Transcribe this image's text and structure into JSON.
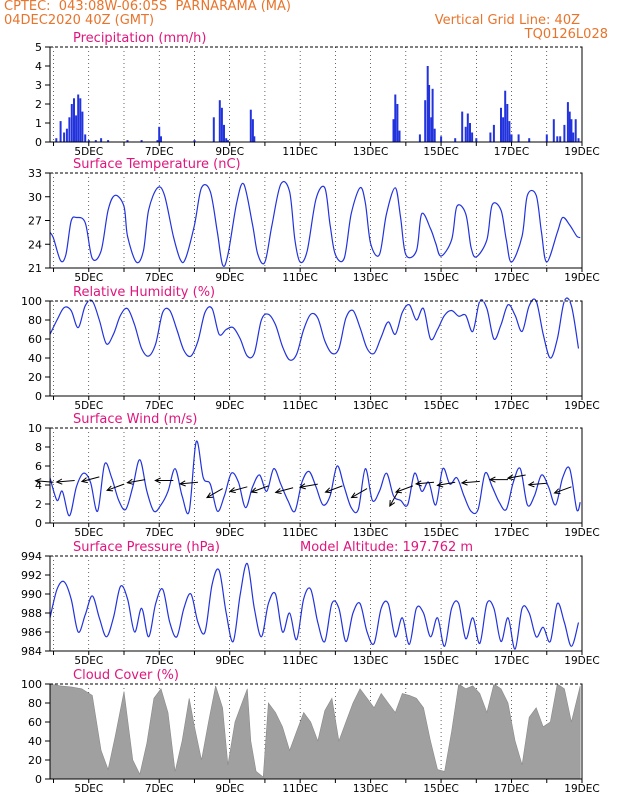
{
  "header": {
    "line1": "CPTEC:  043:08W-06:05S  PARNARAMA (MA)",
    "line2": "04DEC2020 40Z (GMT)",
    "grid_note": "Vertical Grid Line: 40Z",
    "code": "TQ0126L028"
  },
  "colors": {
    "header": "#e8742c",
    "title": "#e0157d",
    "series": "#2233dd",
    "cloud": "#a0a0a0"
  },
  "chart_data": [
    {
      "id": "precip",
      "type": "bar",
      "title": "Precipitation (mm/h)",
      "ylim": [
        0,
        5
      ],
      "yticks": [
        "0",
        "1",
        "2",
        "3",
        "4",
        "5"
      ],
      "xlabels": [
        "5DEC",
        "7DEC",
        "9DEC",
        "11DEC",
        "13DEC",
        "15DEC",
        "17DEC",
        "19DEC"
      ],
      "x": [
        4.08,
        4.2,
        4.3,
        4.38,
        4.45,
        4.52,
        4.58,
        4.64,
        4.7,
        4.76,
        4.82,
        4.9,
        5.0,
        5.2,
        5.35,
        5.55,
        6.1,
        6.5,
        6.95,
        7.0,
        7.05,
        8.0,
        8.55,
        8.72,
        8.78,
        8.84,
        8.9,
        8.95,
        9.6,
        9.66,
        9.7,
        13.65,
        13.7,
        13.76,
        13.82,
        14.4,
        14.55,
        14.62,
        14.66,
        14.72,
        14.76,
        14.82,
        15.0,
        15.4,
        15.6,
        15.7,
        15.76,
        15.82,
        15.88,
        16.0,
        16.4,
        16.5,
        16.7,
        16.76,
        16.82,
        16.88,
        16.94,
        17.0,
        17.2,
        17.5,
        18.0,
        18.2,
        18.3,
        18.38,
        18.5,
        18.6,
        18.65,
        18.7,
        18.75,
        18.82,
        18.9
      ],
      "values": [
        0.2,
        1.1,
        0.5,
        0.7,
        1.3,
        2.0,
        2.3,
        1.4,
        2.5,
        2.3,
        1.6,
        0.4,
        0.1,
        0.1,
        0.2,
        0.1,
        0.1,
        0.1,
        0.1,
        0.8,
        0.3,
        0.1,
        1.3,
        2.2,
        1.8,
        0.9,
        0.2,
        0.1,
        1.7,
        1.2,
        0.3,
        1.2,
        2.5,
        2.0,
        0.6,
        0.4,
        2.2,
        4.0,
        3.0,
        1.3,
        2.8,
        0.7,
        0.3,
        0.2,
        1.6,
        0.8,
        1.5,
        1.0,
        0.5,
        0.2,
        0.5,
        0.9,
        1.8,
        1.3,
        2.7,
        2.0,
        1.1,
        0.4,
        0.4,
        0.2,
        0.4,
        1.2,
        0.3,
        0.3,
        0.9,
        2.1,
        1.6,
        1.2,
        0.5,
        1.2,
        0.2
      ]
    },
    {
      "id": "temp",
      "type": "line",
      "title": "Surface Temperature (nC)",
      "ylim": [
        20.2,
        33
      ],
      "yticks": [
        "21",
        "24",
        "27",
        "30",
        "33"
      ],
      "xlabels": [
        "5DEC",
        "7DEC",
        "9DEC",
        "11DEC",
        "13DEC",
        "15DEC",
        "17DEC",
        "19DEC"
      ],
      "x": [
        3.9,
        4.0,
        4.2,
        4.35,
        4.5,
        4.65,
        4.9,
        5.1,
        5.35,
        5.55,
        5.75,
        6.0,
        6.1,
        6.35,
        6.55,
        6.7,
        6.95,
        7.15,
        7.4,
        7.6,
        7.75,
        8.0,
        8.2,
        8.45,
        8.65,
        8.8,
        8.95,
        9.2,
        9.4,
        9.65,
        9.8,
        10.0,
        10.2,
        10.45,
        10.7,
        10.85,
        11.0,
        11.2,
        11.45,
        11.7,
        11.85,
        12.0,
        12.25,
        12.45,
        12.7,
        12.85,
        13.0,
        13.25,
        13.45,
        13.7,
        13.85,
        14.0,
        14.3,
        14.45,
        14.7,
        14.85,
        15.0,
        15.3,
        15.45,
        15.7,
        15.85,
        16.0,
        16.3,
        16.45,
        16.7,
        16.85,
        17.0,
        17.3,
        17.45,
        17.7,
        17.85,
        18.0,
        18.3,
        18.45,
        18.65,
        18.85,
        18.95
      ],
      "values": [
        25.0,
        24.2,
        21.2,
        22.0,
        26.5,
        27.0,
        26.3,
        21.5,
        22.5,
        28.0,
        30.0,
        28.5,
        24.5,
        21.0,
        22.5,
        28.0,
        31.0,
        30.0,
        24.5,
        21.3,
        21.5,
        26.0,
        31.0,
        30.5,
        25.0,
        20.6,
        22.0,
        29.0,
        31.5,
        26.0,
        22.0,
        21.0,
        26.0,
        31.5,
        30.5,
        24.0,
        21.0,
        22.5,
        29.5,
        31.0,
        26.0,
        22.0,
        21.5,
        27.5,
        31.0,
        29.0,
        23.5,
        22.0,
        27.5,
        31.0,
        27.0,
        22.0,
        22.5,
        27.5,
        25.5,
        23.5,
        21.8,
        24.0,
        28.5,
        27.5,
        23.0,
        21.7,
        24.0,
        28.7,
        28.0,
        24.0,
        21.0,
        24.5,
        30.0,
        30.0,
        25.0,
        21.0,
        25.0,
        27.0,
        26.0,
        24.5,
        24.3
      ]
    },
    {
      "id": "rh",
      "type": "line",
      "title": "Relative Humidity (%)",
      "ylim": [
        0,
        100
      ],
      "yticks": [
        "0",
        "20",
        "40",
        "60",
        "80",
        "100"
      ],
      "xlabels": [
        "5DEC",
        "7DEC",
        "9DEC",
        "11DEC",
        "13DEC",
        "15DEC",
        "17DEC",
        "19DEC"
      ],
      "x": [
        3.9,
        4.1,
        4.3,
        4.5,
        4.7,
        4.9,
        5.1,
        5.3,
        5.5,
        5.7,
        5.9,
        6.1,
        6.3,
        6.5,
        6.7,
        6.9,
        7.1,
        7.3,
        7.5,
        7.7,
        7.9,
        8.1,
        8.3,
        8.5,
        8.7,
        8.9,
        9.1,
        9.3,
        9.5,
        9.7,
        9.9,
        10.1,
        10.3,
        10.5,
        10.7,
        10.9,
        11.1,
        11.3,
        11.5,
        11.7,
        11.9,
        12.1,
        12.3,
        12.5,
        12.7,
        12.9,
        13.1,
        13.3,
        13.5,
        13.7,
        13.9,
        14.1,
        14.3,
        14.5,
        14.7,
        14.9,
        15.1,
        15.3,
        15.5,
        15.7,
        15.9,
        16.1,
        16.3,
        16.5,
        16.7,
        16.9,
        17.1,
        17.3,
        17.5,
        17.7,
        17.9,
        18.1,
        18.3,
        18.5,
        18.7,
        18.9
      ],
      "values": [
        65,
        80,
        93,
        90,
        72,
        95,
        100,
        80,
        55,
        65,
        85,
        92,
        75,
        50,
        42,
        55,
        88,
        90,
        70,
        48,
        42,
        58,
        88,
        92,
        65,
        70,
        72,
        60,
        42,
        45,
        80,
        86,
        75,
        52,
        38,
        44,
        70,
        86,
        82,
        58,
        45,
        50,
        82,
        90,
        72,
        50,
        45,
        62,
        78,
        65,
        88,
        96,
        80,
        92,
        60,
        70,
        85,
        90,
        84,
        85,
        68,
        100,
        92,
        60,
        75,
        96,
        85,
        68,
        95,
        100,
        65,
        40,
        60,
        100,
        95,
        50
      ],
      "smooth": true
    },
    {
      "id": "wind",
      "type": "line",
      "title": "Surface Wind (m/s)",
      "ylim": [
        -0.5,
        10
      ],
      "yticks": [
        "0",
        "2",
        "4",
        "6",
        "8",
        "10"
      ],
      "xlabels": [
        "5DEC",
        "7DEC",
        "9DEC",
        "11DEC",
        "13DEC",
        "15DEC",
        "17DEC",
        "19DEC"
      ],
      "x": [
        3.9,
        4.1,
        4.25,
        4.45,
        4.65,
        4.85,
        5.05,
        5.25,
        5.45,
        5.65,
        5.85,
        6.05,
        6.25,
        6.45,
        6.65,
        6.85,
        7.05,
        7.25,
        7.45,
        7.65,
        7.85,
        8.05,
        8.25,
        8.45,
        8.65,
        8.85,
        9.05,
        9.25,
        9.45,
        9.65,
        9.85,
        10.05,
        10.25,
        10.45,
        10.65,
        10.85,
        11.05,
        11.25,
        11.45,
        11.65,
        11.85,
        12.05,
        12.25,
        12.45,
        12.65,
        12.85,
        13.05,
        13.25,
        13.45,
        13.65,
        13.85,
        14.05,
        14.25,
        14.45,
        14.65,
        14.85,
        15.05,
        15.25,
        15.45,
        15.65,
        15.85,
        16.05,
        16.25,
        16.45,
        16.65,
        16.85,
        17.05,
        17.25,
        17.45,
        17.65,
        17.85,
        18.05,
        18.25,
        18.45,
        18.65,
        18.85,
        18.95
      ],
      "values": [
        4.5,
        2.0,
        3.0,
        0.3,
        3.5,
        5.0,
        4.0,
        0.8,
        6.0,
        4.5,
        2.0,
        1.0,
        3.5,
        6.5,
        3.0,
        0.8,
        1.5,
        3.0,
        5.5,
        2.5,
        0.8,
        8.5,
        4.5,
        3.8,
        0.8,
        2.5,
        5.0,
        4.0,
        1.2,
        3.5,
        4.8,
        3.0,
        5.5,
        3.8,
        2.0,
        0.8,
        4.0,
        5.2,
        3.5,
        1.5,
        2.5,
        5.8,
        3.5,
        1.2,
        1.0,
        5.5,
        2.0,
        3.0,
        5.0,
        2.5,
        2.0,
        1.5,
        5.0,
        3.0,
        4.0,
        1.5,
        5.5,
        3.8,
        4.5,
        2.5,
        0.8,
        1.0,
        5.0,
        3.5,
        1.8,
        1.0,
        4.0,
        5.5,
        1.5,
        2.5,
        4.8,
        3.5,
        1.5,
        4.5,
        5.5,
        1.0,
        1.8
      ],
      "smooth": true,
      "arrows": [
        {
          "x": 4.0,
          "y": 4.0,
          "dir": 175
        },
        {
          "x": 4.6,
          "y": 4.2,
          "dir": 185
        },
        {
          "x": 5.3,
          "y": 4.6,
          "dir": 195
        },
        {
          "x": 6.0,
          "y": 3.8,
          "dir": 200
        },
        {
          "x": 6.6,
          "y": 4.3,
          "dir": 190
        },
        {
          "x": 7.4,
          "y": 4.2,
          "dir": 180
        },
        {
          "x": 8.1,
          "y": 4.0,
          "dir": 185
        },
        {
          "x": 8.8,
          "y": 3.3,
          "dir": 210
        },
        {
          "x": 9.5,
          "y": 3.5,
          "dir": 195
        },
        {
          "x": 10.1,
          "y": 3.6,
          "dir": 200
        },
        {
          "x": 10.8,
          "y": 3.4,
          "dir": 195
        },
        {
          "x": 11.5,
          "y": 3.8,
          "dir": 190
        },
        {
          "x": 12.2,
          "y": 3.6,
          "dir": 200
        },
        {
          "x": 12.9,
          "y": 3.3,
          "dir": 210
        },
        {
          "x": 13.8,
          "y": 3.1,
          "dir": 240
        },
        {
          "x": 14.2,
          "y": 3.6,
          "dir": 200
        },
        {
          "x": 14.8,
          "y": 4.0,
          "dir": 185
        },
        {
          "x": 15.4,
          "y": 4.0,
          "dir": 190
        },
        {
          "x": 16.1,
          "y": 4.1,
          "dir": 185
        },
        {
          "x": 16.9,
          "y": 4.3,
          "dir": 180
        },
        {
          "x": 17.4,
          "y": 4.8,
          "dir": 190
        },
        {
          "x": 18.0,
          "y": 3.9,
          "dir": 185
        },
        {
          "x": 18.7,
          "y": 3.5,
          "dir": 200
        }
      ]
    },
    {
      "id": "press",
      "type": "line",
      "title": "Surface Pressure (hPa)",
      "subtitle": "Model Altitude: 197.762 m",
      "ylim": [
        984,
        994
      ],
      "yticks": [
        "984",
        "986",
        "988",
        "990",
        "992",
        "994"
      ],
      "xlabels": [
        "5DEC",
        "7DEC",
        "9DEC",
        "11DEC",
        "13DEC",
        "15DEC",
        "17DEC",
        "19DEC"
      ],
      "x": [
        3.9,
        4.1,
        4.3,
        4.5,
        4.7,
        4.9,
        5.1,
        5.3,
        5.5,
        5.7,
        5.9,
        6.1,
        6.3,
        6.5,
        6.7,
        6.9,
        7.1,
        7.3,
        7.5,
        7.7,
        7.9,
        8.1,
        8.3,
        8.5,
        8.7,
        8.9,
        9.1,
        9.3,
        9.5,
        9.7,
        9.9,
        10.1,
        10.3,
        10.5,
        10.7,
        10.9,
        11.1,
        11.3,
        11.5,
        11.7,
        11.9,
        12.1,
        12.3,
        12.5,
        12.7,
        12.9,
        13.1,
        13.3,
        13.5,
        13.7,
        13.9,
        14.1,
        14.3,
        14.5,
        14.7,
        14.9,
        15.1,
        15.3,
        15.5,
        15.7,
        15.9,
        16.1,
        16.3,
        16.5,
        16.7,
        16.9,
        17.1,
        17.3,
        17.5,
        17.7,
        17.9,
        18.1,
        18.3,
        18.5,
        18.7,
        18.9
      ],
      "values": [
        987.5,
        990.5,
        991.3,
        989.5,
        986.0,
        987.8,
        989.8,
        987.5,
        985.5,
        987.5,
        990.8,
        989.5,
        986.0,
        988.5,
        985.5,
        989.0,
        990.5,
        987.0,
        985.5,
        988.5,
        990.0,
        987.0,
        986.0,
        991.0,
        992.5,
        988.0,
        985.0,
        990.0,
        993.2,
        988.5,
        985.5,
        989.0,
        990.0,
        986.0,
        988.0,
        985.2,
        989.5,
        990.5,
        987.0,
        985.0,
        989.0,
        988.5,
        985.0,
        988.0,
        989.0,
        986.0,
        984.8,
        988.5,
        989.0,
        985.5,
        987.5,
        984.7,
        988.5,
        988.0,
        985.5,
        987.5,
        984.5,
        988.5,
        989.0,
        985.3,
        987.5,
        984.8,
        989.0,
        988.5,
        985.0,
        987.5,
        984.2,
        988.5,
        988.0,
        985.5,
        986.5,
        985.0,
        989.0,
        987.0,
        984.5,
        987.0
      ],
      "smooth": true
    },
    {
      "id": "cloud",
      "type": "area",
      "title": "Cloud Cover (%)",
      "ylim": [
        0,
        100
      ],
      "yticks": [
        "0",
        "20",
        "40",
        "60",
        "80",
        "100"
      ],
      "xlabels": [
        "5DEC",
        "7DEC",
        "9DEC",
        "11DEC",
        "13DEC",
        "15DEC",
        "17DEC",
        "19DEC"
      ],
      "x": [
        3.9,
        4.2,
        4.5,
        4.8,
        5.1,
        5.35,
        5.55,
        5.75,
        6.0,
        6.25,
        6.45,
        6.65,
        6.85,
        7.05,
        7.25,
        7.45,
        7.65,
        7.85,
        8.0,
        8.2,
        8.4,
        8.6,
        8.8,
        8.95,
        9.15,
        9.35,
        9.5,
        9.6,
        9.75,
        9.95,
        10.1,
        10.3,
        10.5,
        10.7,
        10.9,
        11.1,
        11.3,
        11.5,
        11.7,
        11.9,
        12.1,
        12.3,
        12.5,
        12.7,
        12.9,
        13.1,
        13.3,
        13.5,
        13.7,
        13.9,
        14.1,
        14.3,
        14.5,
        14.7,
        14.9,
        15.1,
        15.3,
        15.5,
        15.7,
        15.9,
        16.1,
        16.3,
        16.5,
        16.7,
        16.9,
        17.1,
        17.3,
        17.5,
        17.7,
        17.9,
        18.1,
        18.3,
        18.5,
        18.7,
        18.95
      ],
      "values": [
        100,
        98,
        97,
        95,
        88,
        30,
        10,
        45,
        92,
        20,
        5,
        38,
        85,
        95,
        70,
        8,
        40,
        85,
        55,
        20,
        60,
        98,
        75,
        15,
        60,
        80,
        95,
        40,
        8,
        2,
        80,
        70,
        55,
        30,
        50,
        70,
        60,
        40,
        72,
        85,
        40,
        60,
        80,
        95,
        85,
        75,
        90,
        80,
        70,
        90,
        88,
        85,
        75,
        40,
        10,
        8,
        50,
        100,
        95,
        98,
        90,
        70,
        100,
        95,
        80,
        40,
        15,
        65,
        75,
        55,
        60,
        100,
        95,
        60,
        98
      ]
    }
  ]
}
